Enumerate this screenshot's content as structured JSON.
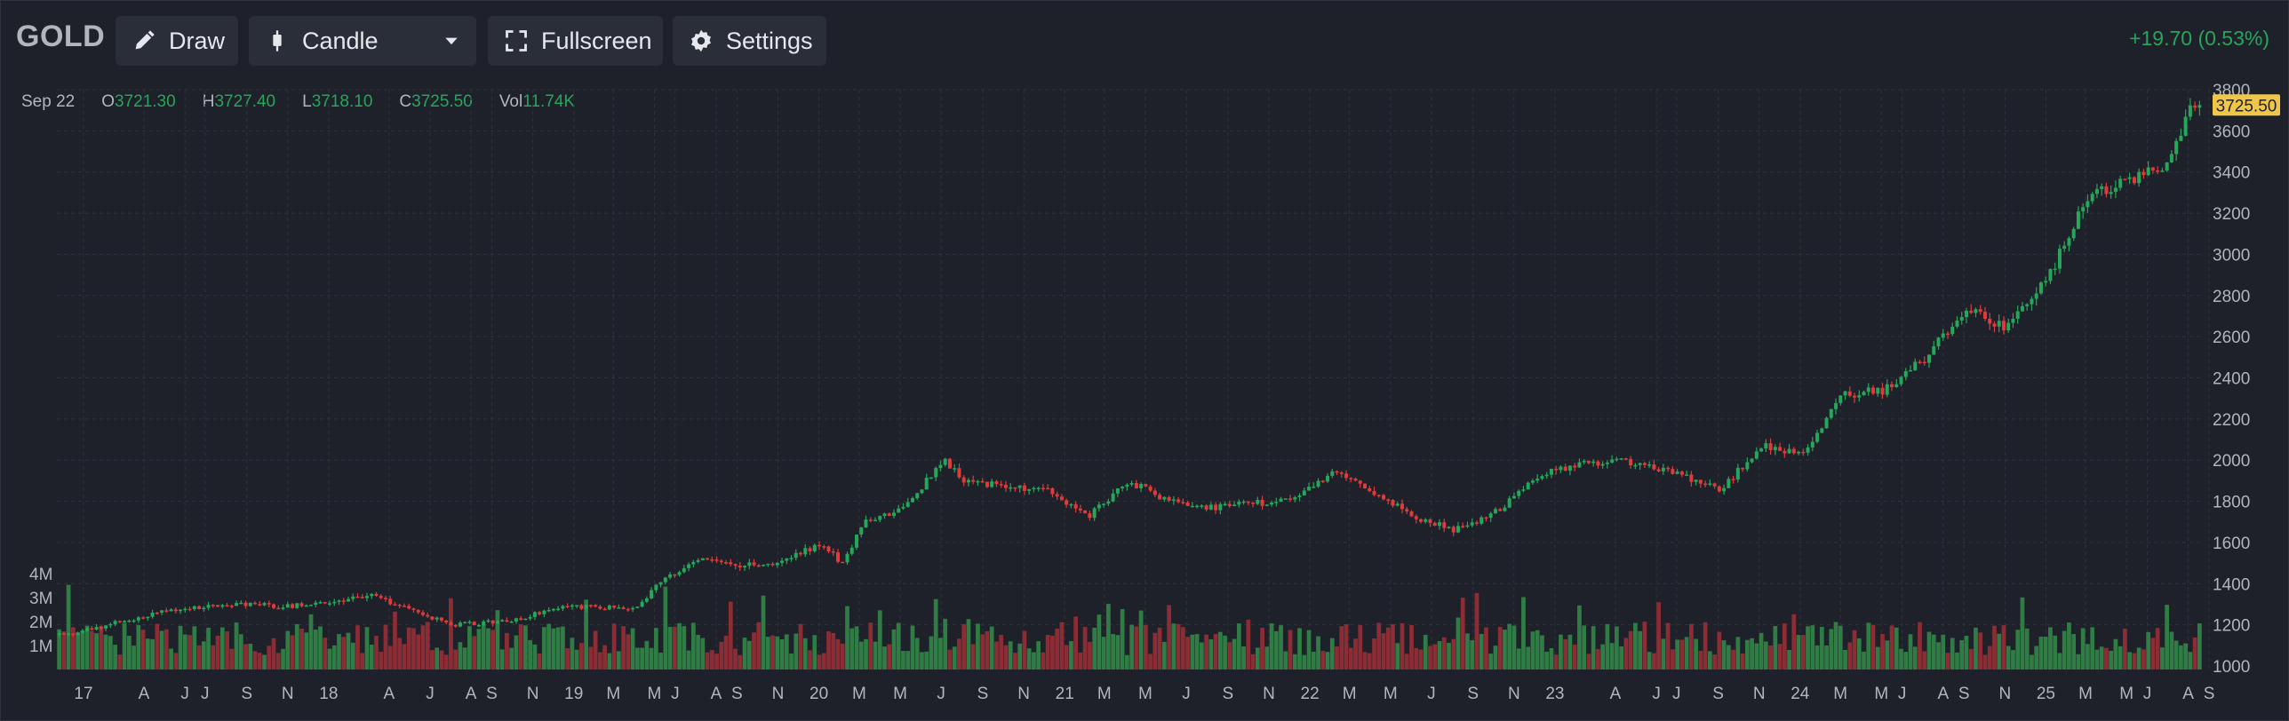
{
  "toolbar": {
    "symbol": "GOLD",
    "draw_label": "Draw",
    "chart_type_label": "Candle",
    "fullscreen_label": "Fullscreen",
    "settings_label": "Settings",
    "change_text": "+19.70 (0.53%)",
    "icons": {
      "draw": "pencil-icon",
      "chart_type": "candle-icon",
      "dropdown": "chevron-down-icon",
      "fullscreen": "fullscreen-icon",
      "settings": "gear-icon"
    }
  },
  "legend": {
    "date": "Sep 22",
    "open_label": "O",
    "open_value": "3721.30",
    "high_label": "H",
    "high_value": "3727.40",
    "low_label": "L",
    "low_value": "3718.10",
    "close_label": "C",
    "close_value": "3725.50",
    "vol_label": "Vol",
    "vol_value": "11.74K"
  },
  "colors": {
    "up": "#26a65b",
    "down": "#e03b3b",
    "up_volume": "#2f7d44",
    "down_volume": "#8c2d35",
    "background": "#1e2129",
    "grid": "#2f333d",
    "last_price_tag": "#f0c64a",
    "change_text": "#26a65b"
  },
  "chart_data": {
    "type": "candlestick",
    "title": "",
    "last_price_label": "3725.50",
    "y_axis": {
      "ticks": [
        1000,
        1200,
        1400,
        1600,
        1800,
        2000,
        2200,
        2400,
        2600,
        2800,
        3000,
        3200,
        3400,
        3600,
        3800
      ],
      "ylim": [
        1000,
        3800
      ],
      "position": "right"
    },
    "volume_axis": {
      "ticks": [
        "1M",
        "2M",
        "3M",
        "4M"
      ],
      "tick_values": [
        1,
        2,
        3,
        4
      ],
      "position": "left"
    },
    "x_axis_labels": [
      "17",
      "A",
      "J",
      "J",
      "S",
      "N",
      "18",
      "A",
      "J",
      "A",
      "S",
      "N",
      "19",
      "M",
      "M",
      "J",
      "A",
      "S",
      "N",
      "20",
      "M",
      "M",
      "J",
      "S",
      "N",
      "21",
      "M",
      "M",
      "J",
      "S",
      "N",
      "22",
      "M",
      "M",
      "J",
      "S",
      "N",
      "23",
      "A",
      "J",
      "J",
      "S",
      "N",
      "24",
      "M",
      "M",
      "J",
      "A",
      "S",
      "N",
      "25",
      "M",
      "M",
      "J",
      "A",
      "S"
    ],
    "grid": true,
    "price_path": {
      "dates": [
        "2017-01",
        "2017-06",
        "2017-09",
        "2017-12",
        "2018-04",
        "2018-08",
        "2018-11",
        "2019-01",
        "2019-05",
        "2019-06",
        "2019-08",
        "2019-10",
        "2019-12",
        "2020-02",
        "2020-03",
        "2020-04",
        "2020-06",
        "2020-08",
        "2020-09",
        "2020-11",
        "2021-01",
        "2021-03",
        "2021-05",
        "2021-07",
        "2021-09",
        "2021-11",
        "2022-01",
        "2022-03",
        "2022-05",
        "2022-07",
        "2022-09",
        "2022-11",
        "2023-01",
        "2023-03",
        "2023-05",
        "2023-07",
        "2023-10",
        "2023-12",
        "2024-02",
        "2024-04",
        "2024-06",
        "2024-08",
        "2024-10",
        "2024-12",
        "2025-02",
        "2025-04",
        "2025-06",
        "2025-08",
        "2025-09"
      ],
      "values": [
        1150,
        1270,
        1300,
        1290,
        1340,
        1200,
        1220,
        1290,
        1280,
        1410,
        1520,
        1490,
        1500,
        1600,
        1490,
        1690,
        1770,
        2000,
        1900,
        1870,
        1850,
        1720,
        1900,
        1800,
        1770,
        1790,
        1800,
        1940,
        1850,
        1720,
        1660,
        1750,
        1920,
        1980,
        2000,
        1960,
        1860,
        2070,
        2030,
        2320,
        2340,
        2500,
        2740,
        2640,
        2900,
        3300,
        3350,
        3450,
        3725.5
      ]
    },
    "volume_note": "daily volume bars, approx. 0.5M–3M"
  }
}
